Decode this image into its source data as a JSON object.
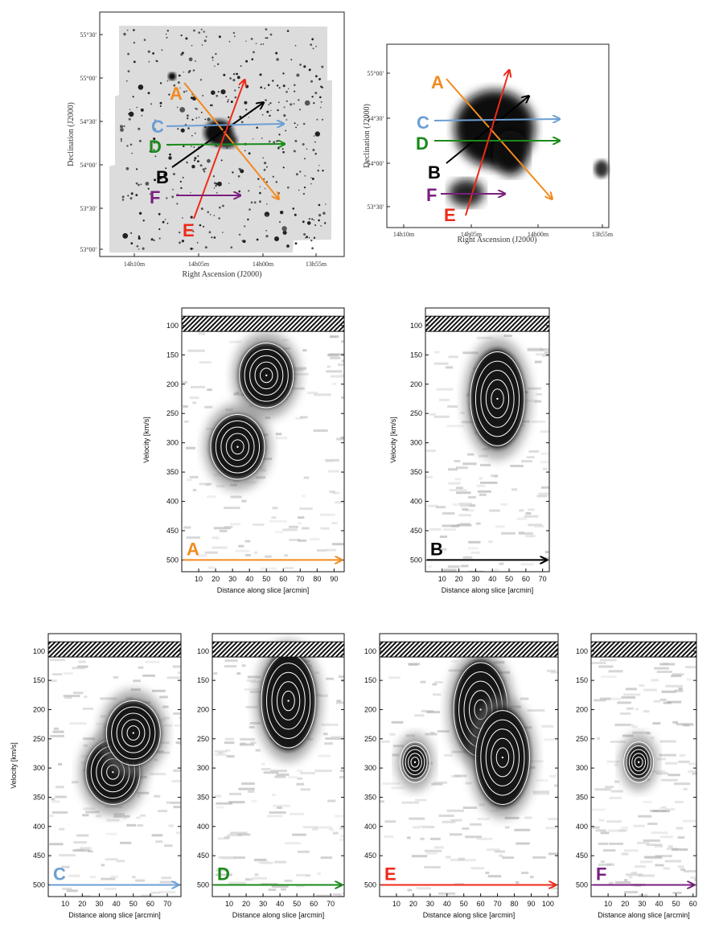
{
  "colors": {
    "A": "#f28a1e",
    "B": "#000000",
    "C": "#6b9fd4",
    "D": "#1a8a1a",
    "E": "#ee2a1a",
    "F": "#7a1f7f"
  },
  "maps": {
    "optical": {
      "ylabel": "Declination (J2000)",
      "xlabel": "Right Ascension (J2000)",
      "yticks": [
        "55°30'",
        "55°00'",
        "54°30'",
        "54°00'",
        "53°30'",
        "53°00'"
      ],
      "xticks": [
        "14h10m",
        "14h05m",
        "14h00m",
        "13h55m"
      ]
    },
    "hi": {
      "ylabel": "Declination (J2000)",
      "xlabel": "Right Ascension (J2000)",
      "yticks": [
        "55°00'",
        "54°30'",
        "54°00'",
        "53°30'"
      ],
      "xticks": [
        "14h10m",
        "14h05m",
        "14h00m",
        "13h55m"
      ]
    },
    "slice_labels": [
      "A",
      "B",
      "C",
      "D",
      "E",
      "F"
    ]
  },
  "pv_common": {
    "ylabel": "Velocity [km/s]",
    "xlabel": "Distance along slice [arcmin]",
    "yticks": [
      100,
      150,
      200,
      250,
      300,
      350,
      400,
      450,
      500
    ]
  },
  "chart_data": [
    {
      "type": "heatmap",
      "panel": "A",
      "xlabel": "Distance along slice [arcmin]",
      "ylabel": "Velocity [km/s]",
      "xticks": [
        10,
        20,
        30,
        40,
        50,
        60,
        70,
        80,
        90
      ],
      "xlim": [
        0,
        96
      ],
      "ylim": [
        520,
        70
      ],
      "emission_peaks": [
        {
          "x": 33,
          "v": 307
        },
        {
          "x": 50,
          "v": 185
        }
      ]
    },
    {
      "type": "heatmap",
      "panel": "B",
      "xlabel": "Distance along slice [arcmin]",
      "ylabel": "Velocity [km/s]",
      "xticks": [
        10,
        20,
        30,
        40,
        50,
        60,
        70
      ],
      "xlim": [
        0,
        74
      ],
      "ylim": [
        520,
        70
      ],
      "emission_peaks": [
        {
          "x": 43,
          "v": 225
        }
      ]
    },
    {
      "type": "heatmap",
      "panel": "C",
      "xlabel": "Distance along slice [arcmin]",
      "ylabel": "Velocity [km/s]",
      "xticks": [
        10,
        20,
        30,
        40,
        50,
        60,
        70
      ],
      "xlim": [
        0,
        78
      ],
      "ylim": [
        520,
        70
      ],
      "emission_peaks": [
        {
          "x": 38,
          "v": 307
        },
        {
          "x": 50,
          "v": 240
        }
      ]
    },
    {
      "type": "heatmap",
      "panel": "D",
      "xlabel": "Distance along slice [arcmin]",
      "ylabel": "Velocity [km/s]",
      "xticks": [
        10,
        20,
        30,
        40,
        50,
        60,
        70
      ],
      "xlim": [
        0,
        78
      ],
      "ylim": [
        520,
        70
      ],
      "emission_peaks": [
        {
          "x": 45,
          "v": 185
        }
      ]
    },
    {
      "type": "heatmap",
      "panel": "E",
      "xlabel": "Distance along slice [arcmin]",
      "ylabel": "Velocity [km/s]",
      "xticks": [
        10,
        20,
        30,
        40,
        50,
        60,
        70,
        80,
        90,
        100
      ],
      "xlim": [
        0,
        106
      ],
      "ylim": [
        520,
        70
      ],
      "emission_peaks": [
        {
          "x": 21,
          "v": 290
        },
        {
          "x": 60,
          "v": 200
        },
        {
          "x": 73,
          "v": 282
        }
      ]
    },
    {
      "type": "heatmap",
      "panel": "F",
      "xlabel": "Distance along slice [arcmin]",
      "ylabel": "Velocity [km/s]",
      "xticks": [
        10,
        20,
        30,
        40,
        50,
        60
      ],
      "xlim": [
        0,
        62
      ],
      "ylim": [
        520,
        70
      ],
      "emission_peaks": [
        {
          "x": 28,
          "v": 290
        }
      ]
    }
  ]
}
